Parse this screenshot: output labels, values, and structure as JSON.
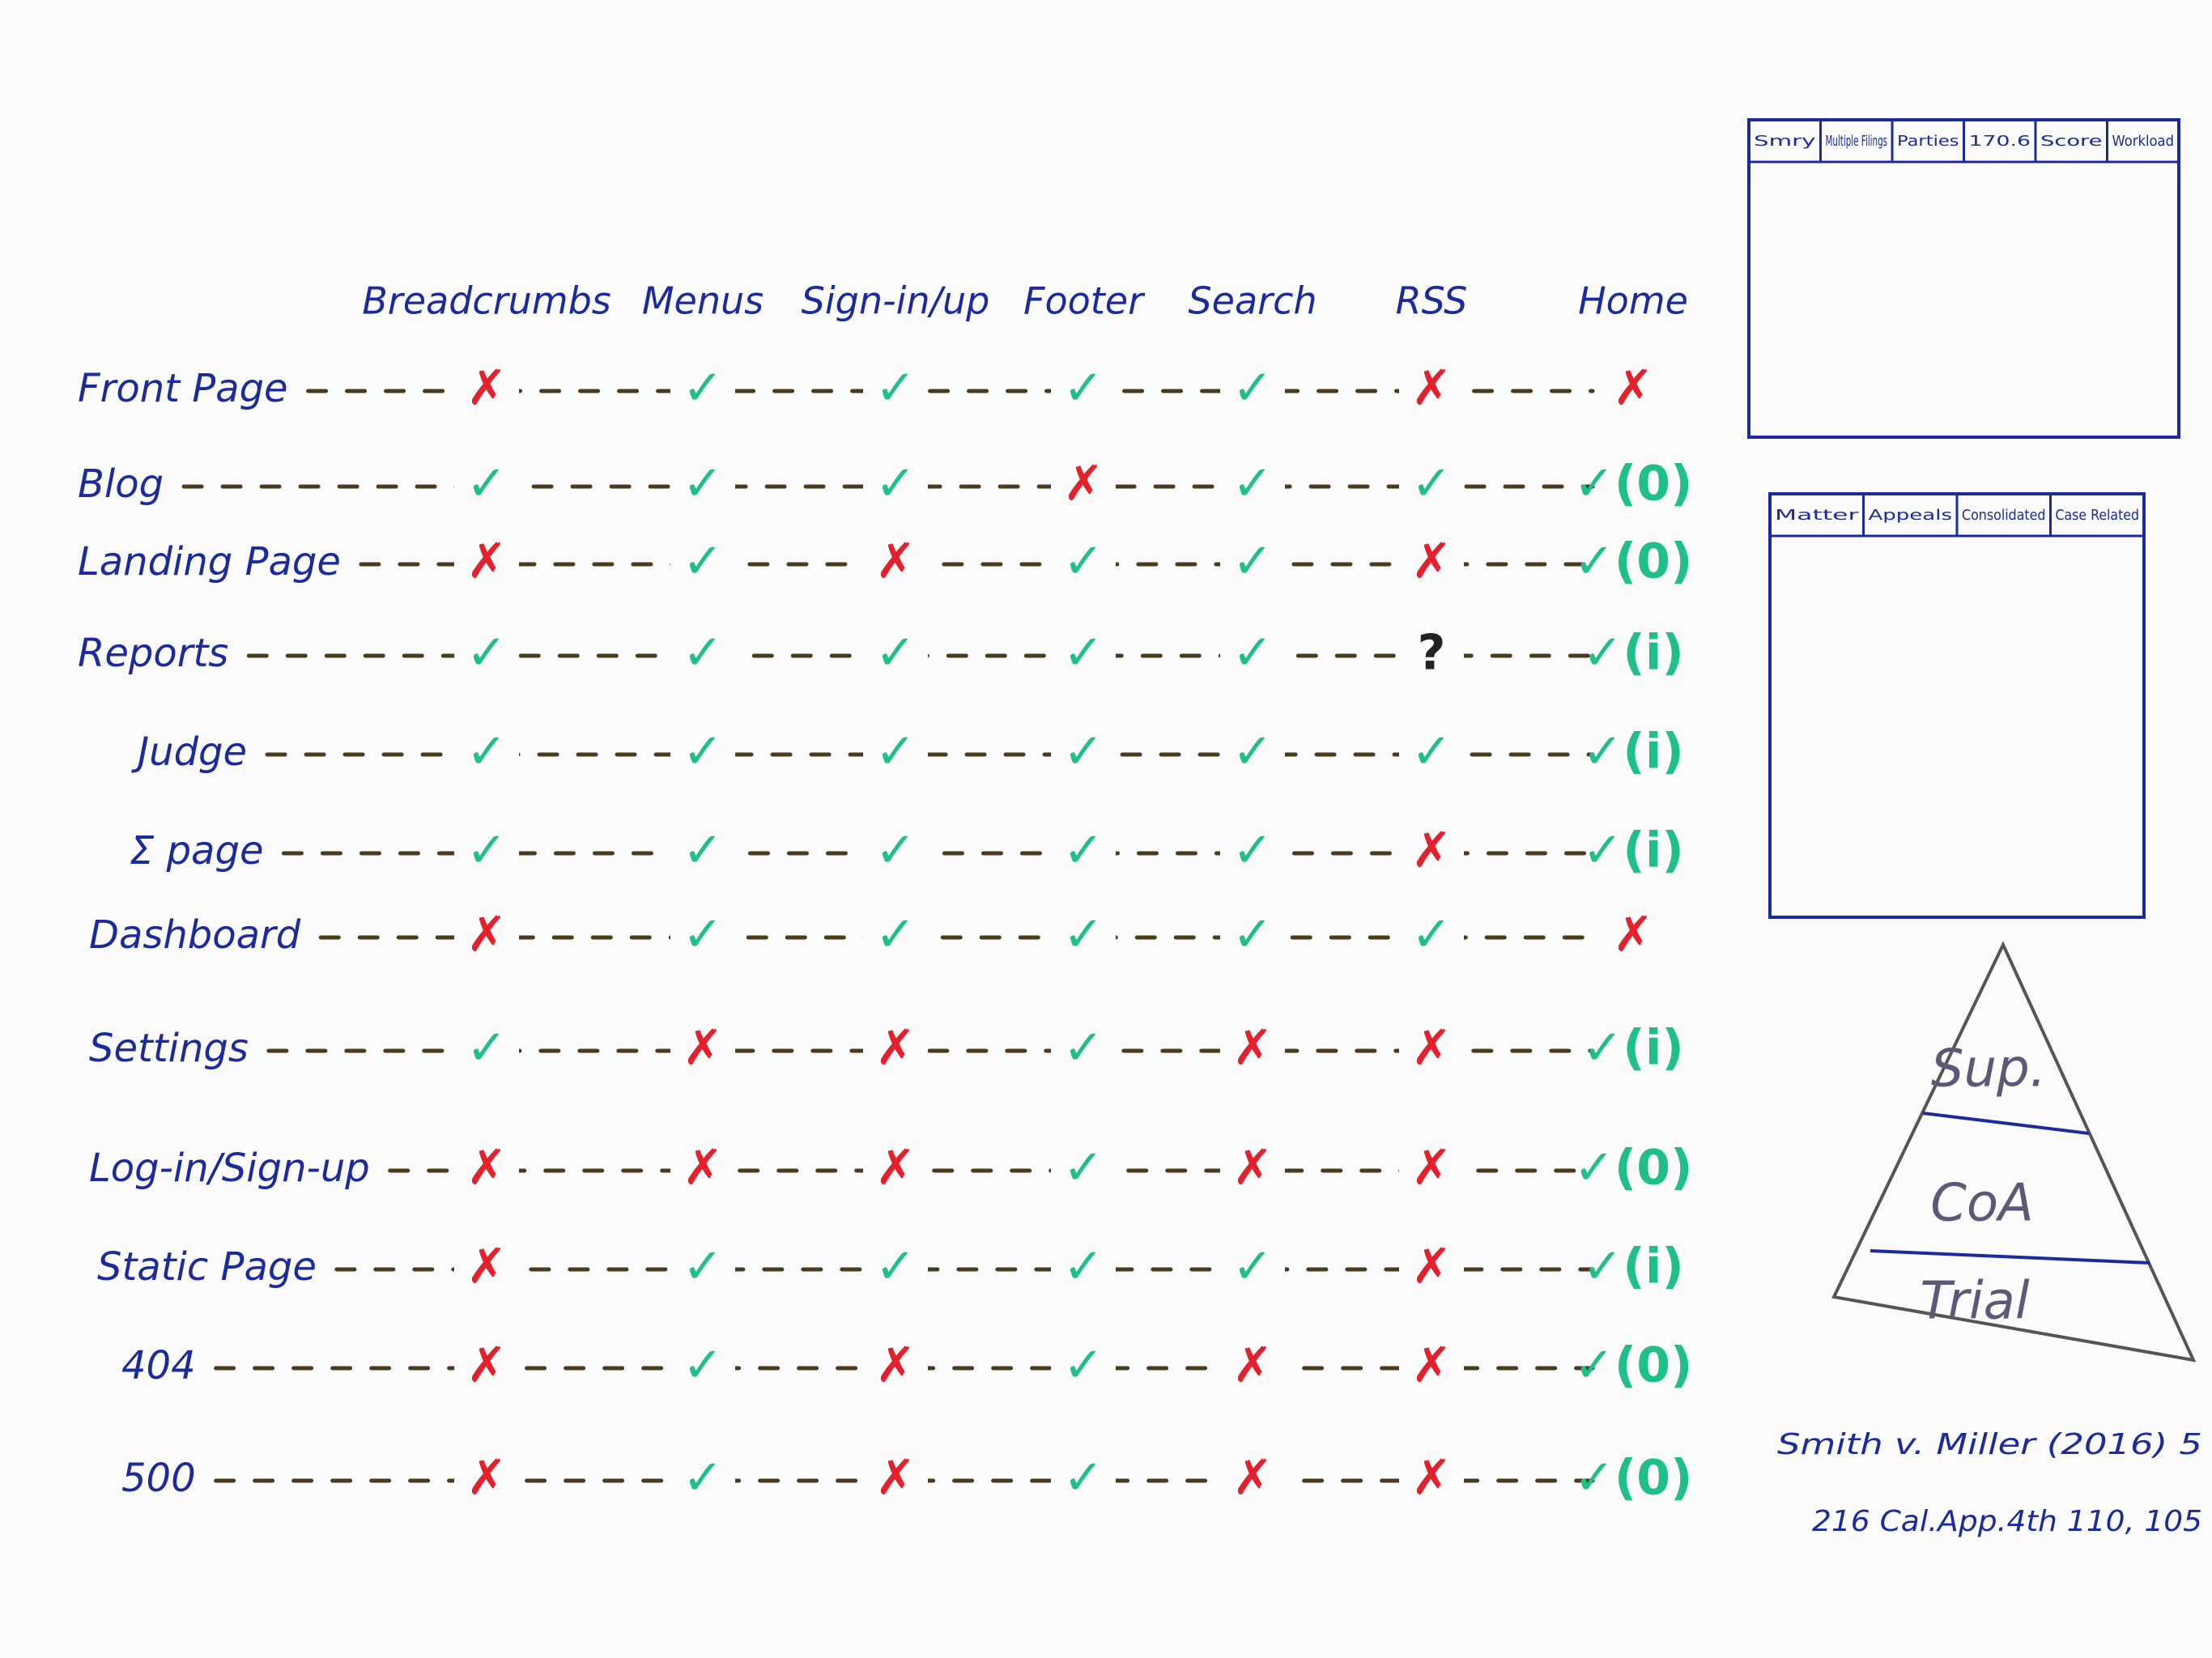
{
  "board": {
    "columns": [
      "Breadcrumbs",
      "Menus",
      "Sign-in/up",
      "Footer",
      "Search",
      "RSS",
      "Home"
    ],
    "rows": [
      {
        "label": "Front Page",
        "cells": [
          "✗",
          "✓",
          "✓",
          "✓",
          "✓",
          "✗",
          "✗"
        ]
      },
      {
        "label": "Blog",
        "cells": [
          "✓",
          "✓",
          "✓",
          "✗",
          "✓",
          "✓",
          "✓(0)"
        ]
      },
      {
        "label": "Landing Page",
        "cells": [
          "✗",
          "✓",
          "✗",
          "✓",
          "✓",
          "✗",
          "✓(0)"
        ]
      },
      {
        "label": "Reports",
        "cells": [
          "✓",
          "✓",
          "✓",
          "✓",
          "✓",
          "?",
          "✓(i)"
        ]
      },
      {
        "label": "Judge",
        "cells": [
          "✓",
          "✓",
          "✓",
          "✓",
          "✓",
          "✓",
          "✓(i)"
        ]
      },
      {
        "label": "Σ page",
        "cells": [
          "✓",
          "✓",
          "✓",
          "✓",
          "✓",
          "✗",
          "✓(i)"
        ]
      },
      {
        "label": "Dashboard",
        "cells": [
          "✗",
          "✓",
          "✓",
          "✓",
          "✓",
          "✓",
          "✗"
        ]
      },
      {
        "label": "Settings",
        "cells": [
          "✓",
          "✗",
          "✗",
          "✓",
          "✗",
          "✗",
          "✓(i)"
        ]
      },
      {
        "label": "Log-in/Sign-up",
        "cells": [
          "✗",
          "✗",
          "✗",
          "✓",
          "✗",
          "✗",
          "✓(0)"
        ]
      },
      {
        "label": "Static Page",
        "cells": [
          "✗",
          "✓",
          "✓",
          "✓",
          "✓",
          "✗",
          "✓(i)"
        ]
      },
      {
        "label": "404",
        "cells": [
          "✗",
          "✓",
          "✗",
          "✓",
          "✗",
          "✗",
          "✓(0)"
        ]
      },
      {
        "label": "500",
        "cells": [
          "✗",
          "✓",
          "✗",
          "✓",
          "✗",
          "✗",
          "✓(0)"
        ]
      }
    ],
    "wireframes": [
      {
        "tabs": [
          "Smry",
          "Multiple Filings",
          "Parties",
          "170.6",
          "Score",
          "Workload"
        ]
      },
      {
        "tabs": [
          "Matter",
          "Appeals",
          "Consolidated",
          "Case Related"
        ]
      }
    ],
    "pyramid": [
      "Sup.",
      "CoA",
      "Trial"
    ],
    "citation": [
      "Smith v. Miller (2016) 5",
      "216 Cal.App.4th 110, 105"
    ]
  }
}
